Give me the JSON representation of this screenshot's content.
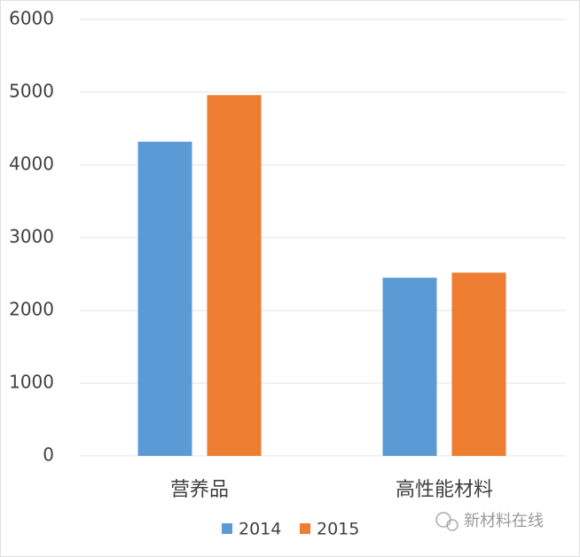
{
  "chart_data": {
    "type": "bar",
    "categories": [
      "营养品",
      "高性能材料"
    ],
    "series": [
      {
        "name": "2014",
        "color": "#5b9bd5",
        "values": [
          4320,
          2450
        ]
      },
      {
        "name": "2015",
        "color": "#ed7d31",
        "values": [
          4960,
          2520
        ]
      }
    ],
    "ylim": [
      0,
      6000
    ],
    "yticks": [
      0,
      1000,
      2000,
      3000,
      4000,
      5000,
      6000
    ],
    "grid": true,
    "legend": "bottom",
    "watermark": "新材料在线"
  }
}
